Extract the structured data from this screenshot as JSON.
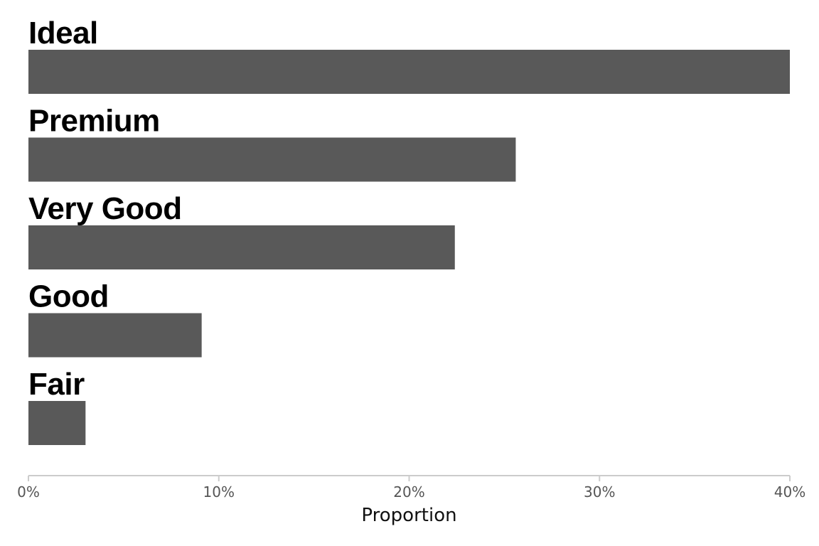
{
  "chart_data": {
    "type": "bar",
    "orientation": "horizontal",
    "categories": [
      "Ideal",
      "Premium",
      "Very Good",
      "Good",
      "Fair"
    ],
    "values": [
      0.4,
      0.256,
      0.224,
      0.091,
      0.03
    ],
    "xlabel": "Proportion",
    "ylabel": "",
    "xlim": [
      0,
      0.4
    ],
    "x_ticks": [
      0,
      0.1,
      0.2,
      0.3,
      0.4
    ],
    "x_tick_labels": [
      "0%",
      "10%",
      "20%",
      "30%",
      "40%"
    ],
    "grid": false,
    "bar_color": "#595959",
    "axis_color": "#cccccc"
  }
}
